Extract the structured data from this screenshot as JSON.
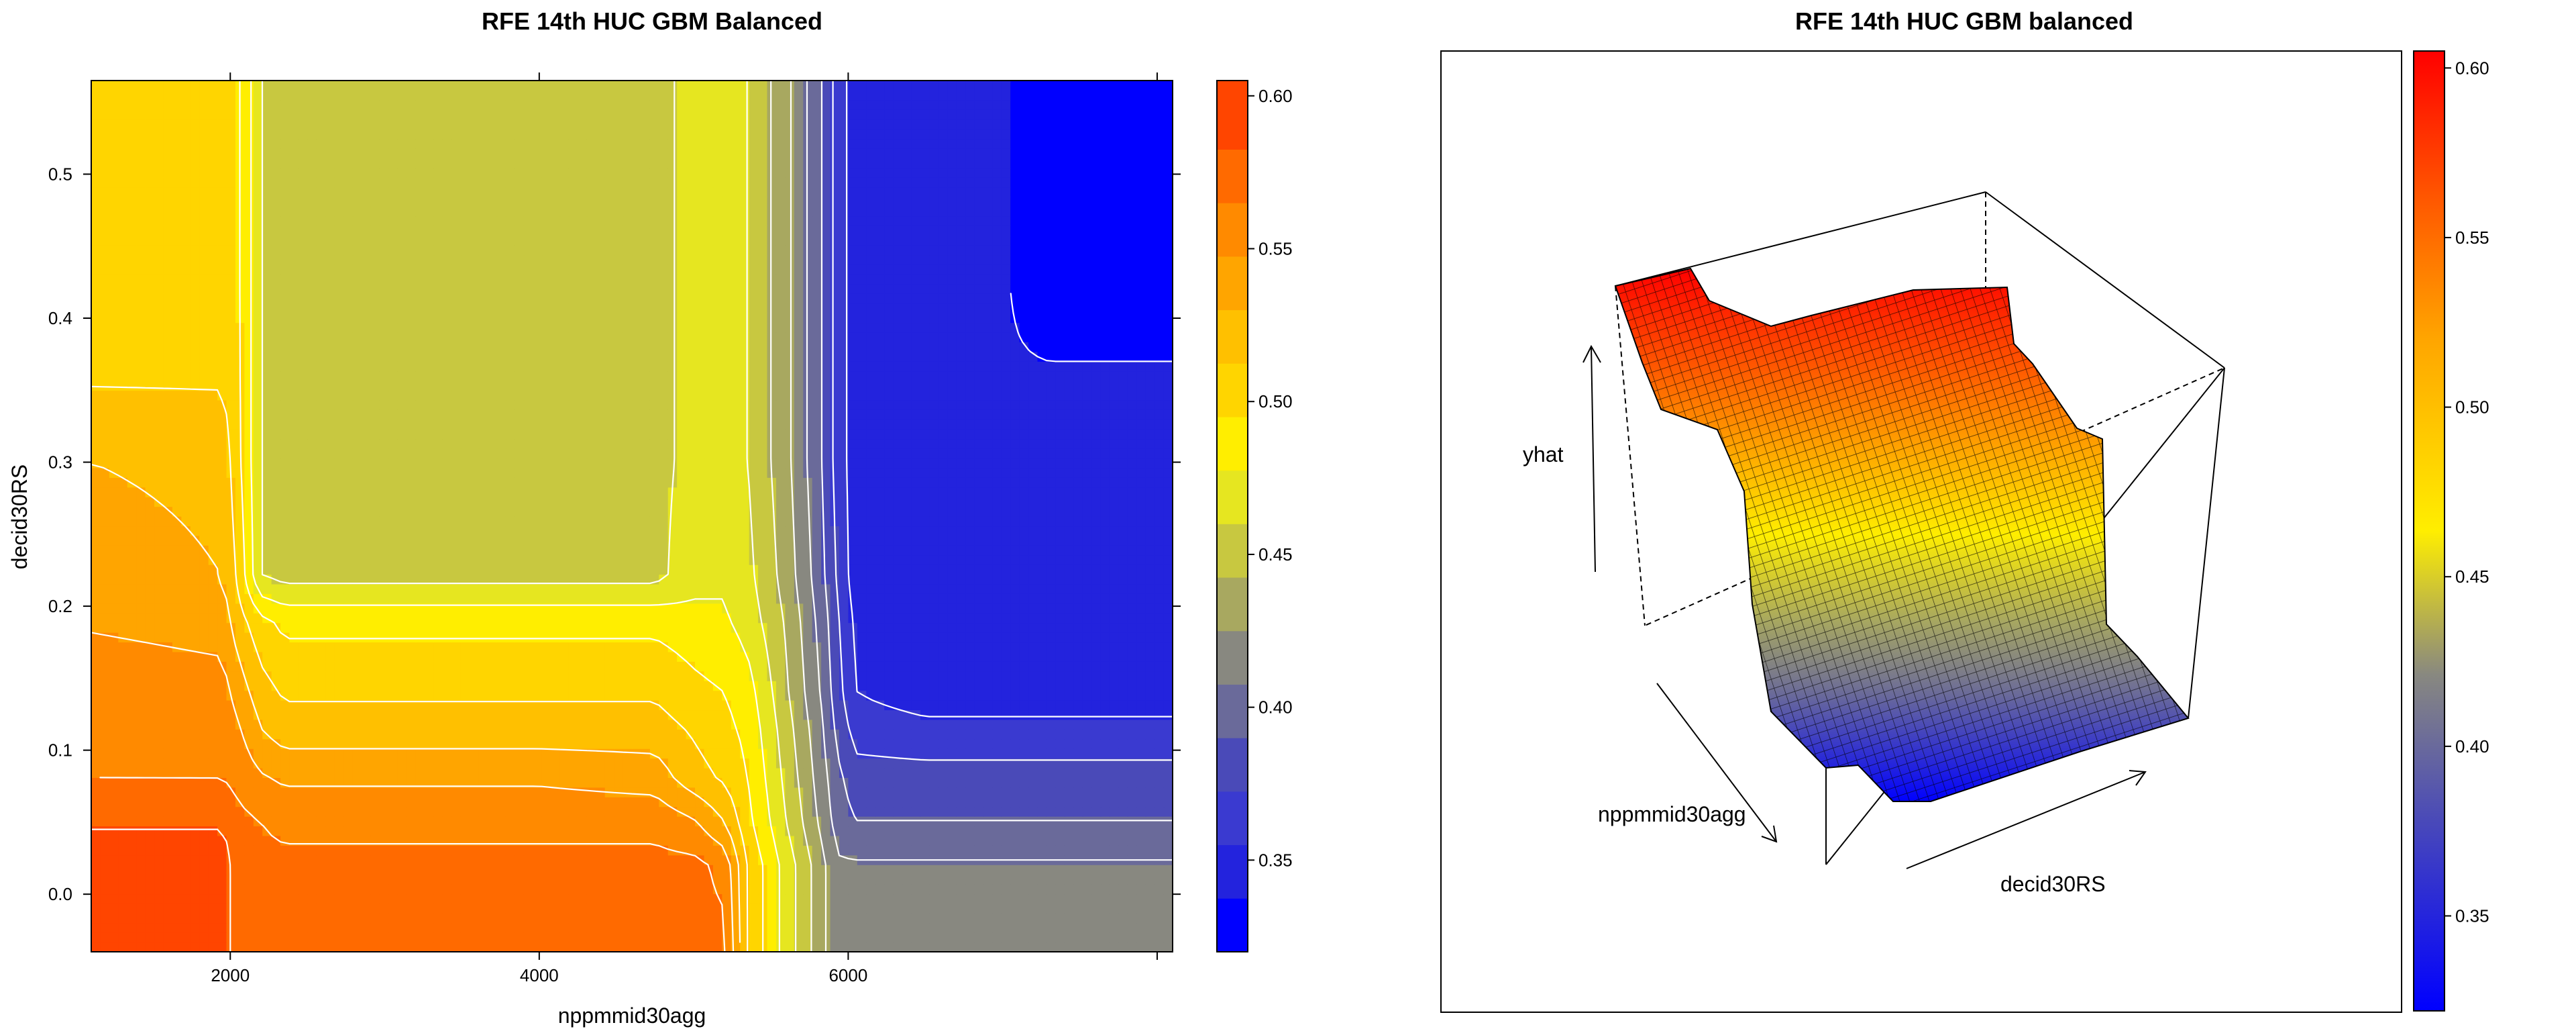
{
  "chart_data": [
    {
      "type": "heatmap",
      "title": "RFE 14th HUC GBM Balanced",
      "xlabel": "nppmmid30agg",
      "ylabel": "decid30RS",
      "xlim": [
        1100,
        8100
      ],
      "ylim": [
        -0.04,
        0.565
      ],
      "x_ticks": [
        "2000",
        "4000",
        "6000"
      ],
      "x_tick_values": [
        2000,
        4000,
        6000
      ],
      "y_ticks": [
        "0.0",
        "0.1",
        "0.2",
        "0.3",
        "0.4",
        "0.5"
      ],
      "y_tick_values": [
        0.0,
        0.1,
        0.2,
        0.3,
        0.4,
        0.5
      ],
      "contours": true,
      "contour_color": "#ffffff",
      "grid": false,
      "x": [
        1100,
        1950,
        2050,
        2200,
        2350,
        3000,
        4000,
        4750,
        5000,
        5200,
        5350,
        5480,
        5600,
        5720,
        5830,
        5930,
        6050,
        6500,
        7000,
        7300,
        8100
      ],
      "y": [
        -0.04,
        0.02,
        0.05,
        0.08,
        0.115,
        0.14,
        0.19,
        0.22,
        0.3,
        0.36,
        0.42,
        0.5,
        0.565
      ],
      "z": [
        [
          0.595,
          0.595,
          0.57,
          0.57,
          0.57,
          0.57,
          0.57,
          0.57,
          0.57,
          0.57,
          0.51,
          0.49,
          0.47,
          0.45,
          0.43,
          0.41,
          0.41,
          0.41,
          0.41,
          0.41,
          0.41
        ],
        [
          0.595,
          0.595,
          0.57,
          0.57,
          0.57,
          0.57,
          0.57,
          0.57,
          0.57,
          0.56,
          0.51,
          0.49,
          0.47,
          0.45,
          0.43,
          0.41,
          0.41,
          0.41,
          0.41,
          0.41,
          0.41
        ],
        [
          0.58,
          0.58,
          0.57,
          0.565,
          0.56,
          0.56,
          0.56,
          0.56,
          0.55,
          0.53,
          0.5,
          0.48,
          0.46,
          0.44,
          0.42,
          0.4,
          0.39,
          0.39,
          0.39,
          0.39,
          0.39
        ],
        [
          0.565,
          0.565,
          0.56,
          0.55,
          0.545,
          0.545,
          0.545,
          0.54,
          0.52,
          0.51,
          0.495,
          0.475,
          0.455,
          0.435,
          0.415,
          0.395,
          0.38,
          0.38,
          0.38,
          0.38,
          0.38
        ],
        [
          0.565,
          0.56,
          0.55,
          0.53,
          0.52,
          0.52,
          0.52,
          0.52,
          0.51,
          0.5,
          0.49,
          0.47,
          0.45,
          0.43,
          0.41,
          0.385,
          0.365,
          0.36,
          0.36,
          0.36,
          0.36
        ],
        [
          0.56,
          0.555,
          0.54,
          0.52,
          0.51,
          0.51,
          0.51,
          0.51,
          0.5,
          0.495,
          0.485,
          0.465,
          0.445,
          0.425,
          0.405,
          0.38,
          0.355,
          0.345,
          0.345,
          0.345,
          0.345
        ],
        [
          0.545,
          0.54,
          0.52,
          0.5,
          0.49,
          0.49,
          0.49,
          0.49,
          0.485,
          0.48,
          0.47,
          0.455,
          0.44,
          0.42,
          0.4,
          0.375,
          0.35,
          0.34,
          0.34,
          0.34,
          0.34
        ],
        [
          0.54,
          0.53,
          0.51,
          0.46,
          0.455,
          0.455,
          0.455,
          0.455,
          0.47,
          0.475,
          0.465,
          0.45,
          0.435,
          0.415,
          0.395,
          0.37,
          0.345,
          0.34,
          0.34,
          0.34,
          0.34
        ],
        [
          0.53,
          0.525,
          0.5,
          0.46,
          0.455,
          0.455,
          0.455,
          0.455,
          0.465,
          0.47,
          0.46,
          0.445,
          0.43,
          0.41,
          0.39,
          0.365,
          0.345,
          0.34,
          0.34,
          0.34,
          0.34
        ],
        [
          0.51,
          0.51,
          0.5,
          0.46,
          0.455,
          0.455,
          0.455,
          0.455,
          0.465,
          0.47,
          0.46,
          0.445,
          0.43,
          0.41,
          0.39,
          0.365,
          0.345,
          0.34,
          0.34,
          0.34,
          0.34
        ],
        [
          0.505,
          0.505,
          0.5,
          0.46,
          0.455,
          0.455,
          0.455,
          0.455,
          0.465,
          0.47,
          0.46,
          0.445,
          0.43,
          0.41,
          0.39,
          0.365,
          0.345,
          0.34,
          0.34,
          0.325,
          0.325
        ],
        [
          0.505,
          0.505,
          0.5,
          0.46,
          0.455,
          0.455,
          0.455,
          0.455,
          0.465,
          0.47,
          0.46,
          0.445,
          0.43,
          0.41,
          0.39,
          0.365,
          0.345,
          0.34,
          0.34,
          0.325,
          0.325
        ],
        [
          0.505,
          0.505,
          0.5,
          0.46,
          0.455,
          0.455,
          0.455,
          0.455,
          0.465,
          0.47,
          0.46,
          0.445,
          0.43,
          0.41,
          0.39,
          0.365,
          0.345,
          0.34,
          0.34,
          0.325,
          0.325
        ]
      ],
      "colorbar": {
        "ticks": [
          "0.35",
          "0.40",
          "0.45",
          "0.50",
          "0.55",
          "0.60"
        ],
        "tick_values": [
          0.35,
          0.4,
          0.45,
          0.5,
          0.55,
          0.6
        ],
        "range": [
          0.32,
          0.605
        ],
        "breaks": [
          0.32,
          0.3375,
          0.355,
          0.3725,
          0.39,
          0.4075,
          0.425,
          0.4425,
          0.46,
          0.4775,
          0.495,
          0.5125,
          0.53,
          0.5475,
          0.565,
          0.5825,
          0.605
        ],
        "colors": [
          "#0000ff",
          "#2323dd",
          "#3a3ad0",
          "#4a4ab8",
          "#6a6a9a",
          "#888880",
          "#a8a860",
          "#c8c840",
          "#e6e620",
          "#ffee00",
          "#ffd500",
          "#ffc000",
          "#ffa500",
          "#ff8a00",
          "#ff6a00",
          "#ff4500",
          "#ff0000"
        ]
      }
    },
    {
      "type": "surface",
      "title": "RFE 14th HUC GBM balanced",
      "axis_labels": [
        "yhat",
        "nppmmid30agg",
        "decid30RS"
      ],
      "colorbar": {
        "ticks": [
          "0.35",
          "0.40",
          "0.45",
          "0.50",
          "0.55",
          "0.60"
        ],
        "tick_values": [
          0.35,
          0.4,
          0.45,
          0.5,
          0.55,
          0.6
        ],
        "range": [
          0.322,
          0.605
        ]
      }
    }
  ]
}
